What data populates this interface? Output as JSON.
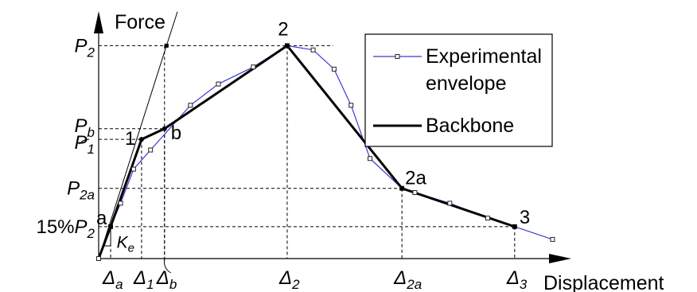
{
  "chart_data": {
    "type": "line",
    "title": "",
    "ylabel": "Force",
    "xlabel": "Displacement",
    "x_ticks": [
      {
        "label": "Δa",
        "sym": "Δ",
        "sub": "a",
        "x": 1.2
      },
      {
        "label": "Δ1",
        "sym": "Δ",
        "sub": "1",
        "x": 4.3
      },
      {
        "label": "Δb",
        "sym": "Δ",
        "sub": "b",
        "x": 6.6
      },
      {
        "label": "Δ2",
        "sym": "Δ",
        "sub": "2",
        "x": 18.9
      },
      {
        "label": "Δ2a",
        "sym": "Δ",
        "sub": "2a",
        "x": 30.4
      },
      {
        "label": "Δ3",
        "sym": "Δ",
        "sub": "3",
        "x": 41.7
      }
    ],
    "y_ticks": [
      {
        "label": "P2",
        "pre": "",
        "sym": "P",
        "sub": "2",
        "y": 100
      },
      {
        "label": "Pb",
        "pre": "",
        "sym": "P",
        "sub": "b",
        "y": 61
      },
      {
        "label": "P1",
        "pre": "",
        "sym": "P",
        "sub": "1",
        "y": 56
      },
      {
        "label": "P2a",
        "pre": "",
        "sym": "P",
        "sub": "2a",
        "y": 33
      },
      {
        "label": "15%P2",
        "pre": "15%",
        "sym": "P",
        "sub": "2",
        "y": 15
      }
    ],
    "series": [
      {
        "name": "Experimental envelope",
        "color": "#3b3bd6",
        "marker": "square",
        "x": [
          0,
          1.2,
          2.2,
          3.5,
          5.2,
          9.2,
          12.0,
          15.5,
          18.9,
          21.5,
          23.6,
          25.3,
          27.2,
          30.4,
          31.7,
          35.2,
          39.0,
          41.7,
          45.5
        ],
        "y": [
          0,
          15,
          26,
          42,
          51,
          72,
          82,
          90,
          100,
          98,
          89,
          72,
          47,
          33,
          31,
          26,
          19,
          15,
          9
        ]
      },
      {
        "name": "Backbone",
        "color": "#000000",
        "x": [
          0,
          1.2,
          4.3,
          6.6,
          18.9,
          30.4,
          41.7
        ],
        "y": [
          0,
          15,
          56,
          61,
          100,
          33,
          15
        ]
      }
    ],
    "stiffness_line": {
      "x": [
        0,
        6.8
      ],
      "y": [
        0,
        100
      ]
    },
    "stiffness_label": {
      "sym": "K",
      "sub": "e"
    },
    "point_labels": [
      {
        "text": "a",
        "x": 1.2,
        "y": 15
      },
      {
        "text": "1",
        "x": 4.3,
        "y": 56
      },
      {
        "text": "b",
        "x": 6.6,
        "y": 61
      },
      {
        "text": "2",
        "x": 18.9,
        "y": 100
      },
      {
        "text": "2a",
        "x": 30.4,
        "y": 33
      },
      {
        "text": "3",
        "x": 41.7,
        "y": 15
      }
    ],
    "xlim": [
      0,
      46.5
    ],
    "ylim": [
      0,
      108
    ],
    "grid": false,
    "legend_position": "top-right",
    "legend": [
      {
        "lines": [
          "Experimental",
          "envelope"
        ],
        "series": "Experimental envelope"
      },
      {
        "lines": [
          "Backbone"
        ],
        "series": "Backbone"
      }
    ]
  }
}
